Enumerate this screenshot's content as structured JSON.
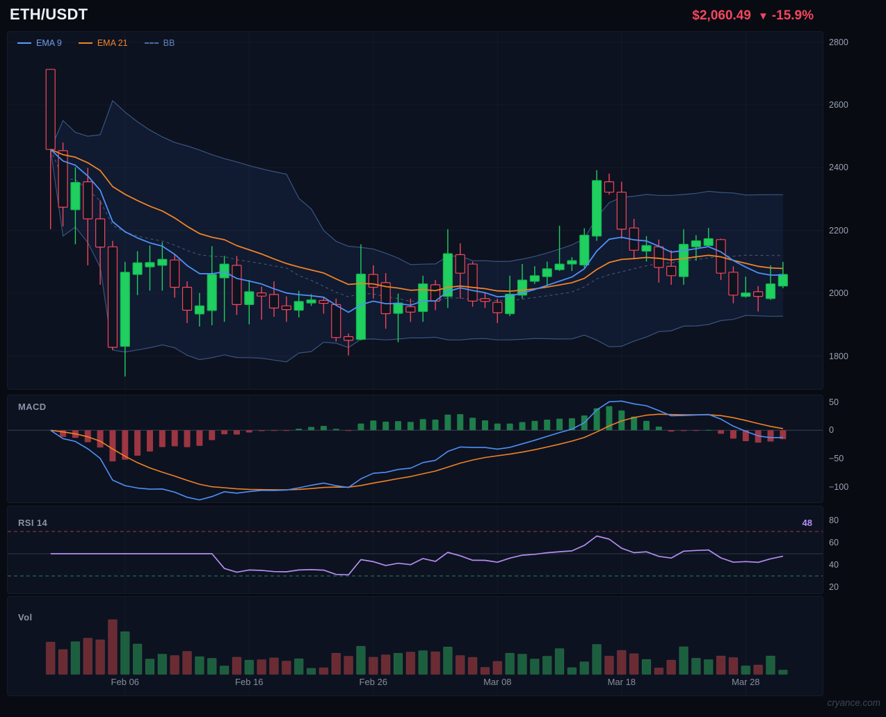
{
  "header": {
    "title": "ETH/USDT",
    "price": "$2,060.49",
    "down_arrow": "▼",
    "change": "-15.9%"
  },
  "legend": [
    {
      "label": "EMA 9",
      "color": "#5b9cf8",
      "text_color": "#6d9eea",
      "style": "solid"
    },
    {
      "label": "EMA 21",
      "color": "#ef8327",
      "text_color": "#ef8327",
      "style": "solid"
    },
    {
      "label": "BB",
      "color": "#4a6fa5",
      "text_color": "#5d82c1",
      "style": "dashed"
    }
  ],
  "panels": {
    "macd_label": "MACD",
    "rsi_label": "RSI 14",
    "vol_label": "Vol",
    "rsi_value": "48"
  },
  "axes": {
    "price_ticks": [
      {
        "label": "2800",
        "value": 2800
      },
      {
        "label": "2600",
        "value": 2600
      },
      {
        "label": "2400",
        "value": 2400
      },
      {
        "label": "2200",
        "value": 2200
      },
      {
        "label": "2000",
        "value": 2000
      },
      {
        "label": "1800",
        "value": 1800
      }
    ],
    "macd_ticks": [
      {
        "label": "50",
        "value": 50
      },
      {
        "label": "0",
        "value": 0
      },
      {
        "label": "−50",
        "value": -50
      },
      {
        "label": "−100",
        "value": -100
      }
    ],
    "rsi_ticks": [
      {
        "label": "80",
        "value": 80
      },
      {
        "label": "60",
        "value": 60
      },
      {
        "label": "40",
        "value": 40
      },
      {
        "label": "20",
        "value": 20
      }
    ],
    "date_tick_indices": [
      6,
      16,
      26,
      36,
      46,
      56
    ]
  },
  "watermark": "cryance.com",
  "colors": {
    "up": "#1fcf5f",
    "up_stroke": "#14b350",
    "down": "#f6465d",
    "down_body_fill": "#0e1320",
    "ema9": "#4f90f7",
    "ema21": "#ef8327",
    "bb_line": "#41608f",
    "bb_fill": "rgba(59,130,246,0.08)",
    "bb_mid": "#5a6e8c",
    "macd_line": "#4f90f7",
    "macd_signal": "#ef8327",
    "hist_up": "#1e7d4a",
    "hist_down": "#9c3642",
    "rsi_line": "#b48ef2",
    "rsi_overbought": "#a03a46",
    "rsi_oversold": "#2a7d5f",
    "rsi_mid": "#2e3646",
    "vol_up": "#1c5f3e",
    "vol_down": "#6b2b33",
    "zero_line": "#394050",
    "grid": "rgba(255,255,255,0.035)"
  },
  "chart_data": {
    "type": "candlestick",
    "title": "ETH/USDT daily candles with EMA 9, EMA 21, Bollinger Bands, MACD(12,26,9), RSI(14) and volume",
    "price_axis_range": [
      1800,
      2800
    ],
    "macd_axis_range": [
      -100,
      50
    ],
    "rsi_axis_range": [
      20,
      80
    ],
    "rsi_guides": {
      "overbought": 70,
      "midline": 50,
      "oversold": 30
    },
    "indicators": {
      "ema_periods": [
        9,
        21
      ],
      "bollinger": {
        "period": 20,
        "stddev": 2
      },
      "macd": [
        12,
        26,
        9
      ],
      "rsi_period": 14
    },
    "x_dates": [
      "Jan 31",
      "Feb 01",
      "Feb 02",
      "Feb 03",
      "Feb 04",
      "Feb 05",
      "Feb 06",
      "Feb 07",
      "Feb 08",
      "Feb 09",
      "Feb 10",
      "Feb 11",
      "Feb 12",
      "Feb 13",
      "Feb 14",
      "Feb 15",
      "Feb 16",
      "Feb 17",
      "Feb 18",
      "Feb 19",
      "Feb 20",
      "Feb 21",
      "Feb 22",
      "Feb 23",
      "Feb 24",
      "Feb 25",
      "Feb 26",
      "Feb 27",
      "Feb 28",
      "Mar 01",
      "Mar 02",
      "Mar 03",
      "Mar 04",
      "Mar 05",
      "Mar 06",
      "Mar 07",
      "Mar 08",
      "Mar 09",
      "Mar 10",
      "Mar 11",
      "Mar 12",
      "Mar 13",
      "Mar 14",
      "Mar 15",
      "Mar 16",
      "Mar 17",
      "Mar 18",
      "Mar 19",
      "Mar 20",
      "Mar 21",
      "Mar 22",
      "Mar 23",
      "Mar 24",
      "Mar 25",
      "Mar 26",
      "Mar 27",
      "Mar 28",
      "Mar 29",
      "Mar 30",
      "Mar 31"
    ],
    "ohlc": [
      [
        2713,
        2714,
        2204,
        2458
      ],
      [
        2454,
        2480,
        2213,
        2274
      ],
      [
        2266,
        2401,
        2156,
        2353
      ],
      [
        2355,
        2399,
        2089,
        2237
      ],
      [
        2237,
        2296,
        2027,
        2147
      ],
      [
        2148,
        2167,
        1820,
        1828
      ],
      [
        1831,
        2100,
        1735,
        2067
      ],
      [
        2060,
        2134,
        1994,
        2097
      ],
      [
        2084,
        2152,
        2008,
        2098
      ],
      [
        2089,
        2163,
        2008,
        2108
      ],
      [
        2106,
        2126,
        1986,
        2019
      ],
      [
        2019,
        2038,
        1905,
        1946
      ],
      [
        1934,
        2001,
        1894,
        1960
      ],
      [
        1945,
        2150,
        1898,
        2060
      ],
      [
        2049,
        2119,
        1909,
        2093
      ],
      [
        2089,
        2119,
        1931,
        1964
      ],
      [
        1964,
        2042,
        1901,
        2005
      ],
      [
        2001,
        2021,
        1916,
        1991
      ],
      [
        1996,
        2038,
        1925,
        1953
      ],
      [
        1960,
        1990,
        1909,
        1948
      ],
      [
        1946,
        2008,
        1923,
        1974
      ],
      [
        1969,
        1997,
        1960,
        1979
      ],
      [
        1977,
        1986,
        1935,
        1968
      ],
      [
        1964,
        1983,
        1846,
        1859
      ],
      [
        1862,
        1872,
        1802,
        1850
      ],
      [
        1853,
        2156,
        1850,
        2061
      ],
      [
        2060,
        2089,
        1983,
        2019
      ],
      [
        2034,
        2064,
        1887,
        1935
      ],
      [
        1936,
        1999,
        1844,
        1969
      ],
      [
        1957,
        1983,
        1909,
        1940
      ],
      [
        1942,
        2056,
        1909,
        2030
      ],
      [
        2027,
        2042,
        1946,
        1975
      ],
      [
        1990,
        2204,
        1953,
        2126
      ],
      [
        2123,
        2159,
        1983,
        2064
      ],
      [
        2093,
        2101,
        1957,
        1975
      ],
      [
        1983,
        2001,
        1953,
        1974
      ],
      [
        1971,
        1983,
        1905,
        1938
      ],
      [
        1935,
        2056,
        1927,
        1997
      ],
      [
        1994,
        2093,
        1983,
        2042
      ],
      [
        2038,
        2086,
        2030,
        2056
      ],
      [
        2053,
        2101,
        2023,
        2078
      ],
      [
        2075,
        2215,
        2071,
        2093
      ],
      [
        2093,
        2115,
        2071,
        2104
      ],
      [
        2090,
        2207,
        2082,
        2185
      ],
      [
        2182,
        2392,
        2167,
        2359
      ],
      [
        2355,
        2381,
        2314,
        2322
      ],
      [
        2322,
        2355,
        2174,
        2204
      ],
      [
        2208,
        2237,
        2108,
        2137
      ],
      [
        2134,
        2182,
        2101,
        2152
      ],
      [
        2148,
        2171,
        2034,
        2082
      ],
      [
        2086,
        2137,
        2027,
        2056
      ],
      [
        2053,
        2204,
        2027,
        2156
      ],
      [
        2148,
        2185,
        2104,
        2167
      ],
      [
        2152,
        2208,
        2148,
        2174
      ],
      [
        2171,
        2174,
        2042,
        2064
      ],
      [
        2067,
        2086,
        1968,
        1994
      ],
      [
        1990,
        2053,
        1986,
        2001
      ],
      [
        2005,
        2023,
        1942,
        1990
      ],
      [
        1983,
        2089,
        1979,
        2030
      ],
      [
        2023,
        2100,
        2016,
        2060
      ]
    ],
    "volume": [
      46.7,
      36,
      47.3,
      52.3,
      50,
      79,
      61.7,
      44,
      22.3,
      29.3,
      27.3,
      33.3,
      25.7,
      23.3,
      12.3,
      25,
      20.7,
      21.3,
      24,
      19.3,
      22.7,
      9,
      9.7,
      30.7,
      26.3,
      40.7,
      25,
      28.3,
      30.7,
      32.3,
      34.3,
      32.7,
      39.7,
      27.3,
      24.7,
      10.3,
      19,
      30.7,
      29.3,
      22.3,
      26.3,
      37.3,
      10,
      18.3,
      43.3,
      26.4,
      34.7,
      30,
      21.7,
      9.4,
      20.7,
      40,
      23.4,
      21.4,
      26.7,
      24.4,
      12.4,
      13.7,
      26.7,
      6.4
    ]
  }
}
